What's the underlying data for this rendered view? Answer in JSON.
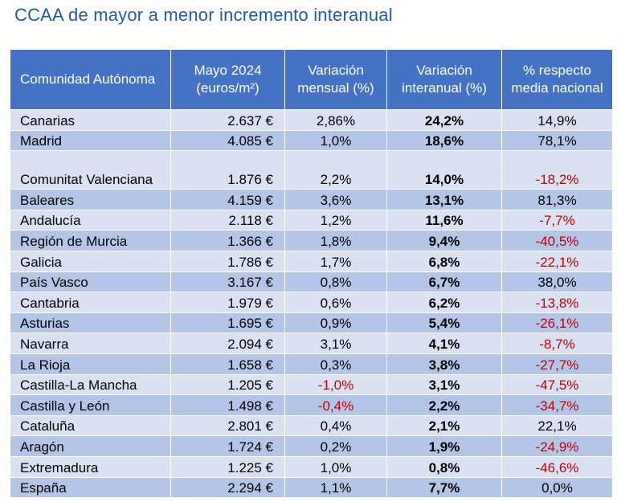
{
  "title": "CCAA de mayor a menor incremento interanual",
  "columns": [
    "Comunidad Autónoma",
    "Mayo 2024 (euros/m²)",
    "Variación mensual (%)",
    "Variación interanual (%)",
    "% respecto media nacional"
  ],
  "rows": [
    {
      "name": "Canarias",
      "price": "2.637 €",
      "monthly": "2,86%",
      "monthly_neg": false,
      "yoy": "24,2%",
      "vs_national": "14,9%",
      "vs_neg": false
    },
    {
      "name": "Madrid",
      "price": "4.085 €",
      "monthly": "1,0%",
      "monthly_neg": false,
      "yoy": "18,6%",
      "vs_national": "78,1%",
      "vs_neg": false
    },
    {
      "name": "Comunitat Valenciana",
      "price": "1.876 €",
      "monthly": "2,2%",
      "monthly_neg": false,
      "yoy": "14,0%",
      "vs_national": "-18,2%",
      "vs_neg": true
    },
    {
      "name": "Baleares",
      "price": "4.159 €",
      "monthly": "3,6%",
      "monthly_neg": false,
      "yoy": "13,1%",
      "vs_national": "81,3%",
      "vs_neg": false
    },
    {
      "name": "Andalucía",
      "price": "2.118 €",
      "monthly": "1,2%",
      "monthly_neg": false,
      "yoy": "11,6%",
      "vs_national": "-7,7%",
      "vs_neg": true
    },
    {
      "name": "Región de Murcia",
      "price": "1.366 €",
      "monthly": "1,8%",
      "monthly_neg": false,
      "yoy": "9,4%",
      "vs_national": "-40,5%",
      "vs_neg": true
    },
    {
      "name": "Galicia",
      "price": "1.786 €",
      "monthly": "1,7%",
      "monthly_neg": false,
      "yoy": "6,8%",
      "vs_national": "-22,1%",
      "vs_neg": true
    },
    {
      "name": "País Vasco",
      "price": "3.167 €",
      "monthly": "0,8%",
      "monthly_neg": false,
      "yoy": "6,7%",
      "vs_national": "38,0%",
      "vs_neg": false
    },
    {
      "name": "Cantabria",
      "price": "1.979 €",
      "monthly": "0,6%",
      "monthly_neg": false,
      "yoy": "6,2%",
      "vs_national": "-13,8%",
      "vs_neg": true
    },
    {
      "name": "Asturias",
      "price": "1.695 €",
      "monthly": "0,9%",
      "monthly_neg": false,
      "yoy": "5,4%",
      "vs_national": "-26,1%",
      "vs_neg": true
    },
    {
      "name": "Navarra",
      "price": "2.094 €",
      "monthly": "3,1%",
      "monthly_neg": false,
      "yoy": "4,1%",
      "vs_national": "-8,7%",
      "vs_neg": true
    },
    {
      "name": "La Rioja",
      "price": "1.658 €",
      "monthly": "0,3%",
      "monthly_neg": false,
      "yoy": "3,8%",
      "vs_national": "-27,7%",
      "vs_neg": true
    },
    {
      "name": "Castilla-La Mancha",
      "price": "1.205 €",
      "monthly": "-1,0%",
      "monthly_neg": true,
      "yoy": "3,1%",
      "vs_national": "-47,5%",
      "vs_neg": true
    },
    {
      "name": "Castilla y León",
      "price": "1.498 €",
      "monthly": "-0,4%",
      "monthly_neg": true,
      "yoy": "2,2%",
      "vs_national": "-34,7%",
      "vs_neg": true
    },
    {
      "name": "Cataluña",
      "price": "2.801 €",
      "monthly": "0,4%",
      "monthly_neg": false,
      "yoy": "2,1%",
      "vs_national": "22,1%",
      "vs_neg": false
    },
    {
      "name": "Aragón",
      "price": "1.724 €",
      "monthly": "0,2%",
      "monthly_neg": false,
      "yoy": "1,9%",
      "vs_national": "-24,9%",
      "vs_neg": true
    },
    {
      "name": "Extremadura",
      "price": "1.225 €",
      "monthly": "1,0%",
      "monthly_neg": false,
      "yoy": "0,8%",
      "vs_national": "-46,6%",
      "vs_neg": true
    },
    {
      "name": "España",
      "price": "2.294 €",
      "monthly": "1,1%",
      "monthly_neg": false,
      "yoy": "7,7%",
      "vs_national": "0,0%",
      "vs_neg": false
    }
  ],
  "colors": {
    "header_bg": "#4472c4",
    "row_light": "#d9e1f2",
    "row_dark": "#b4c6e7",
    "negative": "#c00000",
    "title": "#1f5aa6"
  }
}
